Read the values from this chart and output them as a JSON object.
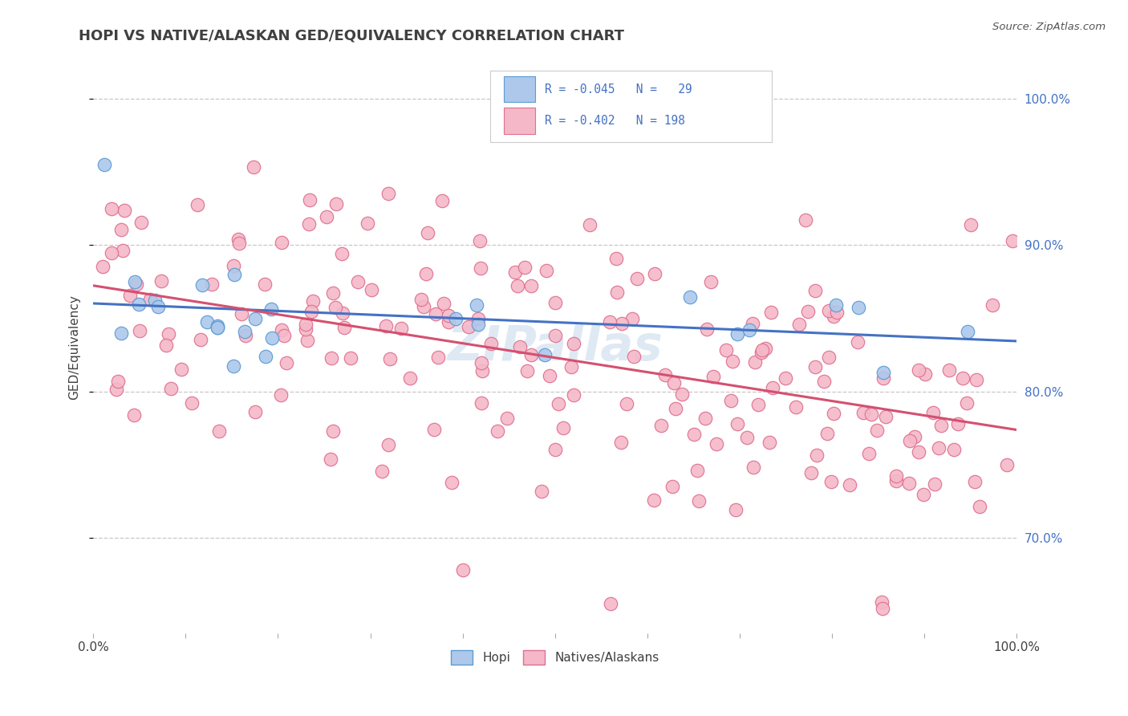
{
  "title": "HOPI VS NATIVE/ALASKAN GED/EQUIVALENCY CORRELATION CHART",
  "source": "Source: ZipAtlas.com",
  "ylabel": "GED/Equivalency",
  "y_ticks": [
    0.7,
    0.8,
    0.9,
    1.0
  ],
  "y_tick_labels": [
    "70.0%",
    "80.0%",
    "90.0%",
    "100.0%"
  ],
  "xlim": [
    0.0,
    1.0
  ],
  "ylim": [
    0.635,
    1.025
  ],
  "hopi_R": -0.045,
  "hopi_N": 29,
  "native_R": -0.402,
  "native_N": 198,
  "hopi_color": "#adc8ea",
  "hopi_edge_color": "#5b9bd5",
  "hopi_line_color": "#4472c4",
  "native_color": "#f4b8c8",
  "native_edge_color": "#e07090",
  "native_line_color": "#d45070",
  "legend_text_color": "#4472c4",
  "title_color": "#404040",
  "source_color": "#555555",
  "watermark_color": "#c5d8ec",
  "grid_color": "#c8c8c8",
  "tick_label_color": "#4472c4",
  "bottom_label_color": "#404040"
}
